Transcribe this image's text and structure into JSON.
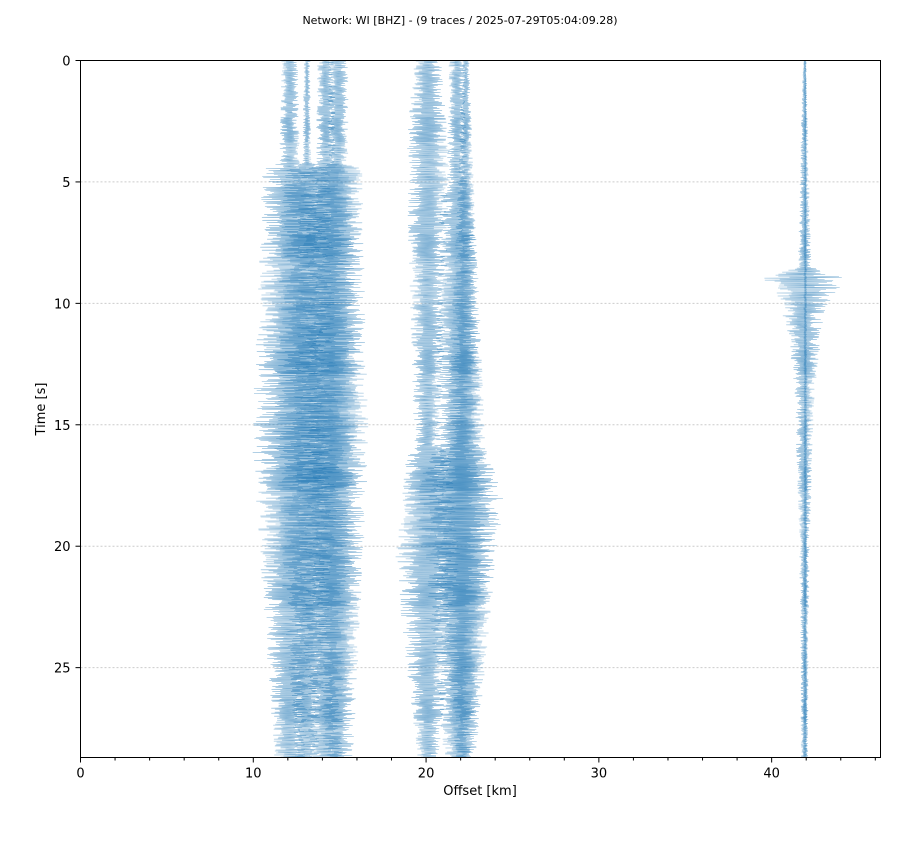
{
  "chart_data": {
    "type": "line",
    "title": "Network: WI [BHZ] - (9 traces / 2025-07-29T05:04:09.28)",
    "xlabel": "Offset [km]",
    "ylabel": "Time [s]",
    "xlim": [
      0,
      46.3
    ],
    "ylim": [
      28.7,
      0
    ],
    "y_inverted": true,
    "x_ticks": [
      0,
      10,
      20,
      30,
      40
    ],
    "x_tick_labels": [
      "0",
      "10",
      "20",
      "30",
      "40"
    ],
    "y_ticks": [
      0,
      5,
      10,
      15,
      20,
      25
    ],
    "y_tick_labels": [
      "0",
      "5",
      "10",
      "15",
      "20",
      "25"
    ],
    "grid": "horizontal",
    "colors": {
      "trace": "#1f77b4",
      "grid": "#cccccc"
    },
    "series": [
      {
        "offset_km": 12.1,
        "envelope": [
          [
            0,
            0.5
          ],
          [
            4.2,
            0.6
          ],
          [
            4.5,
            1.6
          ],
          [
            16,
            2.2
          ],
          [
            28.5,
            0.9
          ]
        ]
      },
      {
        "offset_km": 13.1,
        "envelope": [
          [
            0,
            0.2
          ],
          [
            4.2,
            0.25
          ],
          [
            4.5,
            1.4
          ],
          [
            16,
            2.0
          ],
          [
            28.5,
            0.7
          ]
        ]
      },
      {
        "offset_km": 14.2,
        "envelope": [
          [
            0,
            0.5
          ],
          [
            4.2,
            0.6
          ],
          [
            4.5,
            1.6
          ],
          [
            16,
            1.9
          ],
          [
            28.5,
            1.0
          ]
        ]
      },
      {
        "offset_km": 14.9,
        "envelope": [
          [
            0,
            0.6
          ],
          [
            4.2,
            0.6
          ],
          [
            4.5,
            1.4
          ],
          [
            16,
            1.8
          ],
          [
            28.5,
            0.9
          ]
        ]
      },
      {
        "offset_km": 20.1,
        "envelope": [
          [
            0,
            0.8
          ],
          [
            3.8,
            1.3
          ],
          [
            15.8,
            0.8
          ],
          [
            16.5,
            1.4
          ],
          [
            20.5,
            1.9
          ],
          [
            28.5,
            0.7
          ]
        ]
      },
      {
        "offset_km": 21.8,
        "envelope": [
          [
            0,
            0.5
          ],
          [
            5,
            0.6
          ],
          [
            5.6,
            1.0
          ],
          [
            16,
            1.4
          ],
          [
            18,
            2.6
          ],
          [
            23,
            1.6
          ],
          [
            28.5,
            0.8
          ]
        ]
      },
      {
        "offset_km": 22.3,
        "envelope": [
          [
            0,
            0.2
          ],
          [
            5.6,
            0.5
          ],
          [
            16,
            1.2
          ],
          [
            18,
            2.2
          ],
          [
            28.5,
            0.6
          ]
        ]
      },
      {
        "offset_km": 41.9,
        "envelope": [
          [
            0,
            0.05
          ],
          [
            1.2,
            0.15
          ],
          [
            8.5,
            0.4
          ],
          [
            9.0,
            2.6
          ],
          [
            10.0,
            1.4
          ],
          [
            11.5,
            1.0
          ],
          [
            13.5,
            0.6
          ],
          [
            20,
            0.3
          ],
          [
            28.5,
            0.2
          ]
        ]
      },
      {
        "offset_km": 41.95,
        "envelope": [
          [
            0,
            0.05
          ],
          [
            28.5,
            0.15
          ]
        ]
      }
    ]
  }
}
